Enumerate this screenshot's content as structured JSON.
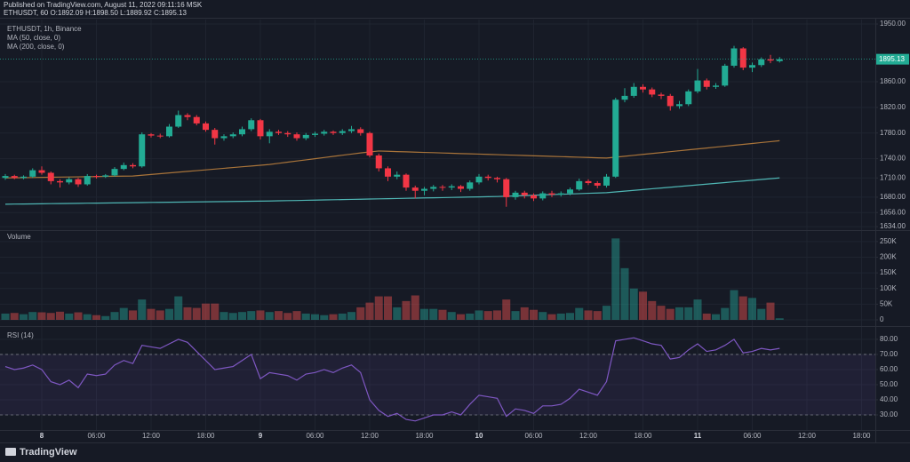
{
  "header": {
    "published": "Published on TradingView.com, August 11, 2022 09:11:16 MSK",
    "ohlc": "ETHUSDT, 60 O:1892.09 H:1898.50 L:1889.92 C:1895.13"
  },
  "footer": {
    "brand": "TradingView"
  },
  "chart_data": [
    {
      "type": "candlestick",
      "title": "ETHUSDT, 1h, Binance",
      "categories": [
        null,
        null,
        null,
        null,
        "8",
        null,
        null,
        null,
        null,
        null,
        "06:00",
        null,
        null,
        null,
        null,
        null,
        "12:00",
        null,
        null,
        null,
        null,
        null,
        "18:00",
        null,
        null,
        null,
        null,
        null,
        "9",
        null,
        null,
        null,
        null,
        null,
        "06:00",
        null,
        null,
        null,
        null,
        null,
        "12:00",
        null,
        null,
        null,
        null,
        null,
        "18:00",
        null,
        null,
        null,
        null,
        null,
        "10",
        null,
        null,
        null,
        null,
        null,
        "06:00",
        null,
        null,
        null,
        null,
        null,
        "12:00",
        null,
        null,
        null,
        null,
        null,
        "18:00",
        null,
        null,
        null,
        null,
        null,
        "11",
        null,
        null,
        null,
        null,
        null,
        "06:00",
        null,
        null,
        null,
        null,
        null,
        "12:00",
        null,
        null,
        null,
        null,
        null,
        "18:00"
      ],
      "open": [
        1710,
        1713,
        1710,
        1712,
        1722,
        1718,
        1705,
        1703,
        1708,
        1700,
        1713,
        1712,
        1714,
        1724,
        1730,
        1728,
        1778,
        1776,
        1775,
        1790,
        1808,
        1805,
        1795,
        1785,
        1772,
        1775,
        1778,
        1786,
        1800,
        1775,
        1782,
        1780,
        1778,
        1772,
        1777,
        1779,
        1782,
        1780,
        1783,
        1786,
        1780,
        1745,
        1725,
        1712,
        1715,
        1695,
        1690,
        1693,
        1696,
        1695,
        1697,
        1693,
        1703,
        1712,
        1710,
        1708,
        1680,
        1687,
        1683,
        1678,
        1686,
        1684,
        1686,
        1692,
        1705,
        1702,
        1698,
        1712,
        1832,
        1838,
        1852,
        1848,
        1840,
        1838,
        1822,
        1825,
        1845,
        1862,
        1852,
        1854,
        1885,
        1912,
        1882,
        1886,
        1895,
        1892.09,
        null,
        null,
        null,
        null,
        null,
        null,
        null,
        null,
        null
      ],
      "high": [
        1716,
        1715,
        1714,
        1725,
        1728,
        1720,
        1708,
        1711,
        1710,
        1716,
        1715,
        1716,
        1727,
        1734,
        1733,
        1781,
        1780,
        1779,
        1794,
        1815,
        1811,
        1808,
        1798,
        1788,
        1778,
        1781,
        1790,
        1803,
        1802,
        1786,
        1785,
        1783,
        1781,
        1780,
        1782,
        1785,
        1784,
        1786,
        1791,
        1789,
        1782,
        1748,
        1728,
        1720,
        1717,
        1698,
        1696,
        1699,
        1699,
        1700,
        1699,
        1706,
        1716,
        1715,
        1712,
        1710,
        1690,
        1690,
        1686,
        1689,
        1690,
        1689,
        1695,
        1709,
        1708,
        1705,
        1716,
        1835,
        1850,
        1858,
        1856,
        1851,
        1843,
        1841,
        1830,
        1848,
        1880,
        1865,
        1858,
        1888,
        1916,
        1914,
        1890,
        1898,
        1902,
        1898.5,
        null,
        null,
        null,
        null,
        null,
        null,
        null,
        null,
        null
      ],
      "low": [
        1707,
        1708,
        1708,
        1710,
        1715,
        1700,
        1695,
        1700,
        1696,
        1698,
        1709,
        1710,
        1712,
        1722,
        1725,
        1726,
        1773,
        1772,
        1773,
        1788,
        1800,
        1792,
        1782,
        1762,
        1768,
        1772,
        1775,
        1783,
        1770,
        1764,
        1777,
        1774,
        1768,
        1769,
        1774,
        1776,
        1777,
        1777,
        1780,
        1776,
        1742,
        1720,
        1705,
        1708,
        1690,
        1678,
        1683,
        1689,
        1690,
        1691,
        1688,
        1690,
        1700,
        1706,
        1703,
        1665,
        1676,
        1678,
        1674,
        1675,
        1680,
        1681,
        1683,
        1690,
        1699,
        1694,
        1695,
        1710,
        1828,
        1835,
        1843,
        1836,
        1833,
        1815,
        1818,
        1822,
        1842,
        1848,
        1849,
        1852,
        1882,
        1878,
        1875,
        1883,
        1889,
        1889.92,
        null,
        null,
        null,
        null,
        null,
        null,
        null,
        null,
        null
      ],
      "close": [
        1713,
        1710,
        1712,
        1722,
        1718,
        1705,
        1703,
        1708,
        1700,
        1713,
        1712,
        1714,
        1724,
        1730,
        1728,
        1778,
        1776,
        1775,
        1790,
        1808,
        1805,
        1795,
        1785,
        1772,
        1775,
        1778,
        1786,
        1800,
        1775,
        1782,
        1780,
        1778,
        1772,
        1777,
        1779,
        1782,
        1780,
        1783,
        1786,
        1780,
        1745,
        1725,
        1712,
        1715,
        1695,
        1690,
        1693,
        1696,
        1695,
        1697,
        1693,
        1703,
        1712,
        1710,
        1708,
        1680,
        1687,
        1683,
        1678,
        1686,
        1684,
        1686,
        1692,
        1705,
        1702,
        1698,
        1712,
        1832,
        1838,
        1852,
        1848,
        1840,
        1838,
        1822,
        1825,
        1845,
        1862,
        1852,
        1854,
        1885,
        1912,
        1882,
        1886,
        1895,
        1893,
        1895.13,
        null,
        null,
        null,
        null,
        null,
        null,
        null,
        null,
        null
      ],
      "up_color": "#22ab94",
      "down_color": "#f23645",
      "series": [
        {
          "name": "MA (50, close, 0)",
          "color": "#a9743a",
          "values": [
            1710,
            1710.2,
            1710.4,
            1710.6,
            1710.9,
            1711.1,
            1711.3,
            1711.5,
            1711.7,
            1711.9,
            1712.1,
            1712.4,
            1712.6,
            1712.8,
            1713,
            1714.2,
            1715.4,
            1716.6,
            1717.8,
            1719,
            1720.2,
            1721.4,
            1722.6,
            1723.8,
            1725,
            1726.2,
            1727.4,
            1728.6,
            1729.8,
            1731,
            1732.8,
            1734.6,
            1736.4,
            1738.2,
            1740,
            1741.8,
            1743.6,
            1745.4,
            1747.2,
            1749,
            1750.5,
            1752,
            1751.6,
            1751.1,
            1750.7,
            1750.2,
            1749.8,
            1749.4,
            1748.9,
            1748.5,
            1748,
            1747.6,
            1747.2,
            1746.7,
            1746.3,
            1745.8,
            1745.4,
            1745,
            1744.5,
            1744.1,
            1743.6,
            1743.2,
            1742.8,
            1742.3,
            1741.9,
            1741.4,
            1741,
            1742.4,
            1743.8,
            1745.3,
            1746.7,
            1748.1,
            1749.5,
            1751,
            1752.4,
            1753.8,
            1755.2,
            1756.6,
            1758.1,
            1759.5,
            1760.9,
            1762.3,
            1763.7,
            1765.2,
            1766.6,
            1768,
            null,
            null,
            null,
            null,
            null,
            null,
            null,
            null,
            null
          ]
        },
        {
          "name": "MA (200, close, 0)",
          "color": "#4fb6b4",
          "values": [
            1669,
            1669.2,
            1669.3,
            1669.5,
            1669.7,
            1669.9,
            1670,
            1670.2,
            1670.4,
            1670.6,
            1670.7,
            1670.9,
            1671.1,
            1671.2,
            1671.4,
            1671.6,
            1671.8,
            1671.9,
            1672.1,
            1672.3,
            1672.4,
            1672.6,
            1672.8,
            1673,
            1673.1,
            1673.3,
            1673.5,
            1673.6,
            1673.8,
            1674,
            1674.3,
            1674.6,
            1674.8,
            1675.1,
            1675.4,
            1675.7,
            1676,
            1676.2,
            1676.5,
            1676.8,
            1677.1,
            1677.4,
            1677.6,
            1677.9,
            1678.2,
            1678.5,
            1678.8,
            1679,
            1679.3,
            1679.6,
            1679.9,
            1680.2,
            1680.4,
            1680.7,
            1681,
            1681.5,
            1682,
            1682.5,
            1683,
            1683.5,
            1684,
            1684.5,
            1685,
            1685.5,
            1686,
            1686.5,
            1687,
            1688.2,
            1689.4,
            1690.6,
            1691.8,
            1693.1,
            1694.3,
            1695.5,
            1696.7,
            1697.9,
            1699.1,
            1700.3,
            1701.5,
            1702.7,
            1704,
            1705.2,
            1706.4,
            1707.6,
            1708.8,
            1710,
            null,
            null,
            null,
            null,
            null,
            null,
            null,
            null,
            null
          ]
        }
      ],
      "ylim": [
        1630,
        1957
      ],
      "yticks": [
        {
          "value": 1950,
          "label": "1950.00"
        },
        {
          "value": 1860,
          "label": "1860.00"
        },
        {
          "value": 1820,
          "label": "1820.00"
        },
        {
          "value": 1780,
          "label": "1780.00"
        },
        {
          "value": 1740,
          "label": "1740.00"
        },
        {
          "value": 1710,
          "label": "1710.00"
        },
        {
          "value": 1680,
          "label": "1680.00"
        },
        {
          "value": 1656,
          "label": "1656.00"
        },
        {
          "value": 1634,
          "label": "1634.00"
        }
      ],
      "grid": true,
      "last_price_line": true
    },
    {
      "type": "bar",
      "title": "Volume",
      "values": [
        20000,
        22000,
        18000,
        25000,
        24000,
        22000,
        26000,
        20000,
        24000,
        18000,
        15000,
        12000,
        25000,
        38000,
        30000,
        65000,
        35000,
        30000,
        35000,
        75000,
        40000,
        38000,
        52000,
        52000,
        25000,
        22000,
        25000,
        28000,
        30000,
        25000,
        28000,
        22000,
        28000,
        20000,
        18000,
        15000,
        18000,
        20000,
        25000,
        40000,
        55000,
        75000,
        75000,
        40000,
        60000,
        78000,
        35000,
        35000,
        32000,
        25000,
        18000,
        20000,
        30000,
        28000,
        30000,
        65000,
        28000,
        40000,
        32000,
        25000,
        18000,
        20000,
        22000,
        38000,
        30000,
        28000,
        45000,
        260000,
        165000,
        100000,
        90000,
        60000,
        45000,
        35000,
        40000,
        40000,
        65000,
        20000,
        18000,
        38000,
        95000,
        75000,
        70000,
        35000,
        55000,
        5000,
        null,
        null,
        null,
        null,
        null,
        null,
        null,
        null,
        null
      ],
      "up_color": "#26a69a",
      "down_color": "#ef5350",
      "ylim": [
        0,
        278000
      ],
      "yticks": [
        {
          "value": 250000,
          "label": "250K"
        },
        {
          "value": 200000,
          "label": "200K"
        },
        {
          "value": 150000,
          "label": "150K"
        },
        {
          "value": 100000,
          "label": "100K"
        },
        {
          "value": 50000,
          "label": "50K"
        },
        0
      ],
      "grid": true
    },
    {
      "type": "line",
      "title": "RSI (14)",
      "color": "#7e57c2",
      "values": [
        62,
        60,
        61,
        63,
        60,
        52,
        50,
        53,
        48,
        57,
        56,
        57,
        63,
        66,
        64,
        76,
        75,
        74,
        77,
        80,
        78,
        72,
        66,
        60,
        61,
        62,
        66,
        70,
        54,
        58,
        57,
        56,
        53,
        57,
        58,
        60,
        58,
        61,
        63,
        58,
        40,
        33,
        29,
        31,
        27,
        26,
        28,
        30,
        30,
        32,
        30,
        37,
        43,
        42,
        41,
        29,
        34,
        33,
        31,
        36,
        36,
        37,
        41,
        47,
        45,
        43,
        52,
        79,
        80,
        81,
        79,
        77,
        76,
        67,
        68,
        73,
        77,
        72,
        73,
        76,
        80,
        71,
        72,
        74,
        73,
        74,
        null,
        null,
        null,
        null,
        null,
        null,
        null,
        null,
        null
      ],
      "ylim": [
        20.6,
        87
      ],
      "yticks": [
        {
          "value": 80,
          "label": "80.00"
        },
        {
          "value": 70,
          "label": "70.00"
        },
        {
          "value": 60,
          "label": "60.00"
        },
        {
          "value": 50,
          "label": "50.00"
        },
        {
          "value": 40,
          "label": "40.00"
        },
        {
          "value": 30,
          "label": "30.00"
        }
      ],
      "bands": [
        70,
        30
      ],
      "grid": true
    }
  ]
}
